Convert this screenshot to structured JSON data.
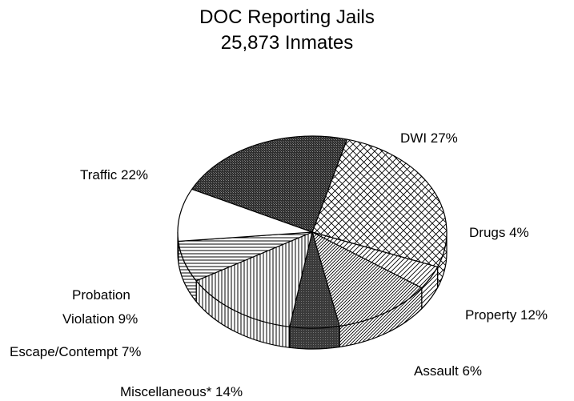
{
  "chart_data": {
    "type": "pie",
    "title": "DOC Reporting Jails",
    "subtitle": "25,873 Inmates",
    "slices": [
      {
        "label": "DWI",
        "percent_label": "27%",
        "value": 27,
        "pattern": "crosshatch",
        "label_lines": [
          "DWI 27%"
        ]
      },
      {
        "label": "Drugs",
        "percent_label": "4%",
        "value": 4,
        "pattern": "diagonal-light",
        "label_lines": [
          "Drugs 4%"
        ]
      },
      {
        "label": "Property",
        "percent_label": "12%",
        "value": 12,
        "pattern": "diagonal-dense",
        "label_lines": [
          "Property 12%"
        ]
      },
      {
        "label": "Assault",
        "percent_label": "6%",
        "value": 6,
        "pattern": "dark-gray",
        "label_lines": [
          "Assault 6%"
        ]
      },
      {
        "label": "Miscellaneous*",
        "percent_label": "14%",
        "value": 14,
        "pattern": "vertical-lines",
        "label_lines": [
          "Miscellaneous* 14%"
        ]
      },
      {
        "label": "Escape/Contempt",
        "percent_label": "7%",
        "value": 7,
        "pattern": "horizontal-lines",
        "label_lines": [
          "Escape/Contempt 7%"
        ]
      },
      {
        "label": "Probation Violation",
        "percent_label": "9%",
        "value": 9,
        "pattern": "white",
        "label_lines": [
          "Probation",
          "Violation 9%"
        ]
      },
      {
        "label": "Traffic",
        "percent_label": "22%",
        "value": 22,
        "pattern": "dark-stipple",
        "label_lines": [
          "Traffic 22%"
        ]
      }
    ]
  }
}
